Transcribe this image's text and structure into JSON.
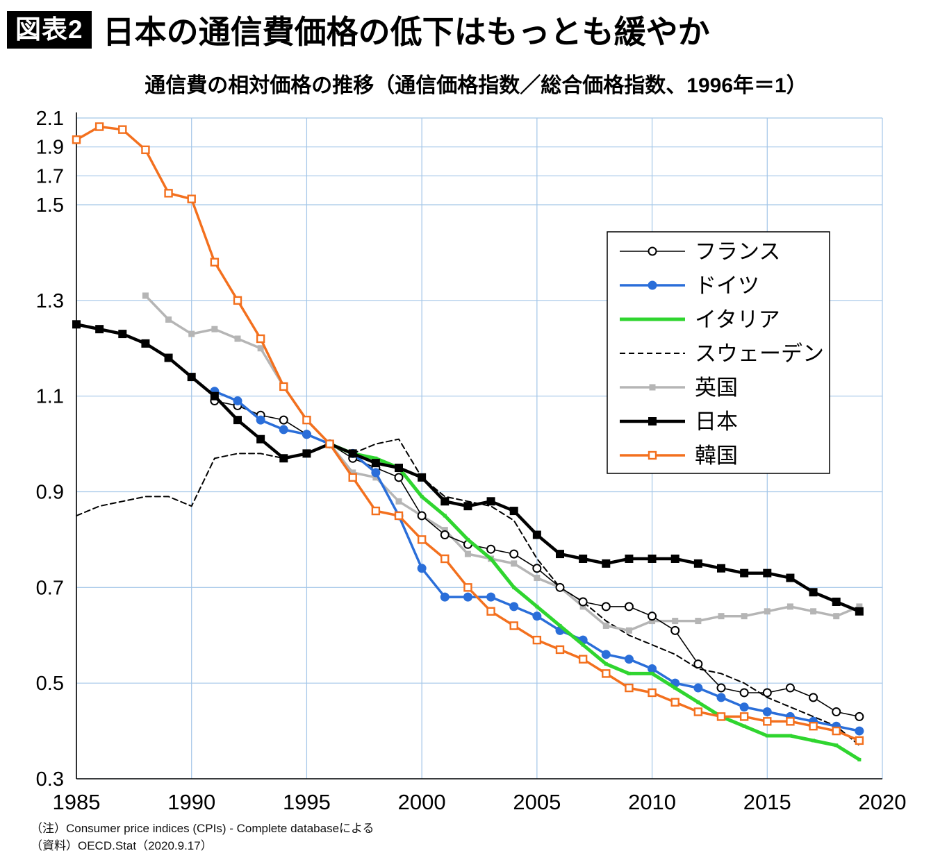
{
  "header": {
    "badge": "図表2",
    "title": "日本の通信費価格の低下はもっとも緩やか"
  },
  "notes": [
    "（注）Consumer price indices (CPIs) - Complete databaseによる",
    "（資料）OECD.Stat（2020.9.17）"
  ],
  "chart_data": {
    "type": "line",
    "title": "通信費の相対価格の推移（通信価格指数／総合価格指数、1996年＝1）",
    "x_axis": {
      "min": 1985,
      "max": 2020,
      "ticks": [
        1985,
        1990,
        1995,
        2000,
        2005,
        2010,
        2015,
        2020
      ]
    },
    "y_axis": {
      "min": 0.3,
      "max": 2.1,
      "ticks": [
        2.1,
        1.9,
        1.7,
        1.5,
        1.3,
        1.1,
        0.9,
        0.7,
        0.5,
        0.3
      ],
      "note": "axis compressed above 1.5"
    },
    "grid": true,
    "grid_color": "#a3c6e8",
    "legend_position": "inside upper right",
    "draw_order": [
      "sweden",
      "uk",
      "france",
      "germany",
      "italy",
      "japan",
      "korea"
    ],
    "series": [
      {
        "id": "france",
        "name": "フランス",
        "color": "#000000",
        "line_width": 1.6,
        "marker": "circle-open",
        "dashed": false,
        "start_year": 1991,
        "values": [
          1.09,
          1.08,
          1.06,
          1.05,
          1.02,
          1.0,
          0.97,
          0.95,
          0.93,
          0.85,
          0.81,
          0.79,
          0.78,
          0.77,
          0.74,
          0.7,
          0.67,
          0.66,
          0.66,
          0.64,
          0.61,
          0.54,
          0.49,
          0.48,
          0.48,
          0.49,
          0.47,
          0.44,
          0.43
        ]
      },
      {
        "id": "germany",
        "name": "ドイツ",
        "color": "#2a6ed9",
        "line_width": 3.5,
        "marker": "circle",
        "dashed": false,
        "start_year": 1991,
        "values": [
          1.11,
          1.09,
          1.05,
          1.03,
          1.02,
          1.0,
          0.98,
          0.94,
          0.85,
          0.74,
          0.68,
          0.68,
          0.68,
          0.66,
          0.64,
          0.61,
          0.59,
          0.56,
          0.55,
          0.53,
          0.5,
          0.49,
          0.47,
          0.45,
          0.44,
          0.43,
          0.42,
          0.41,
          0.4
        ]
      },
      {
        "id": "italy",
        "name": "イタリア",
        "color": "#2fd52f",
        "line_width": 5,
        "marker": "square-tiny",
        "dashed": false,
        "start_year": 1996,
        "values": [
          1.0,
          0.98,
          0.97,
          0.95,
          0.89,
          0.85,
          0.8,
          0.76,
          0.7,
          0.66,
          0.62,
          0.58,
          0.54,
          0.52,
          0.52,
          0.49,
          0.46,
          0.43,
          0.41,
          0.39,
          0.39,
          0.38,
          0.37,
          0.34
        ]
      },
      {
        "id": "sweden",
        "name": "スウェーデン",
        "color": "#000000",
        "line_width": 2,
        "marker": "none",
        "dashed": true,
        "start_year": 1985,
        "values": [
          0.85,
          0.87,
          0.88,
          0.89,
          0.89,
          0.87,
          0.97,
          0.98,
          0.98,
          0.97,
          0.98,
          1.0,
          0.98,
          1.0,
          1.01,
          0.93,
          0.89,
          0.88,
          0.87,
          0.84,
          0.76,
          0.7,
          0.67,
          0.63,
          0.6,
          0.58,
          0.56,
          0.53,
          0.52,
          0.5,
          0.47,
          0.45,
          0.43,
          0.41,
          0.37
        ]
      },
      {
        "id": "uk",
        "name": "英国",
        "color": "#b5b5b5",
        "line_width": 3.5,
        "marker": "square-sm",
        "dashed": false,
        "start_year": 1988,
        "values": [
          1.31,
          1.26,
          1.23,
          1.24,
          1.22,
          1.2,
          1.12,
          1.05,
          1.0,
          0.94,
          0.93,
          0.88,
          0.85,
          0.82,
          0.77,
          0.76,
          0.75,
          0.72,
          0.7,
          0.66,
          0.62,
          0.61,
          0.63,
          0.63,
          0.63,
          0.64,
          0.64,
          0.65,
          0.66,
          0.65,
          0.64,
          0.66
        ]
      },
      {
        "id": "japan",
        "name": "日本",
        "color": "#000000",
        "line_width": 4.5,
        "marker": "square",
        "dashed": false,
        "start_year": 1985,
        "values": [
          1.25,
          1.24,
          1.23,
          1.21,
          1.18,
          1.14,
          1.1,
          1.05,
          1.01,
          0.97,
          0.98,
          1.0,
          0.98,
          0.96,
          0.95,
          0.93,
          0.88,
          0.87,
          0.88,
          0.86,
          0.81,
          0.77,
          0.76,
          0.75,
          0.76,
          0.76,
          0.76,
          0.75,
          0.74,
          0.73,
          0.73,
          0.72,
          0.69,
          0.67,
          0.65
        ]
      },
      {
        "id": "korea",
        "name": "韓国",
        "color": "#f3701e",
        "line_width": 3.5,
        "marker": "square-open",
        "dashed": false,
        "start_year": 1985,
        "values": [
          1.95,
          2.04,
          2.02,
          1.88,
          1.58,
          1.54,
          1.38,
          1.3,
          1.22,
          1.12,
          1.05,
          1.0,
          0.93,
          0.86,
          0.85,
          0.8,
          0.76,
          0.7,
          0.65,
          0.62,
          0.59,
          0.57,
          0.55,
          0.52,
          0.49,
          0.48,
          0.46,
          0.44,
          0.43,
          0.43,
          0.42,
          0.42,
          0.41,
          0.4,
          0.38
        ]
      }
    ]
  }
}
